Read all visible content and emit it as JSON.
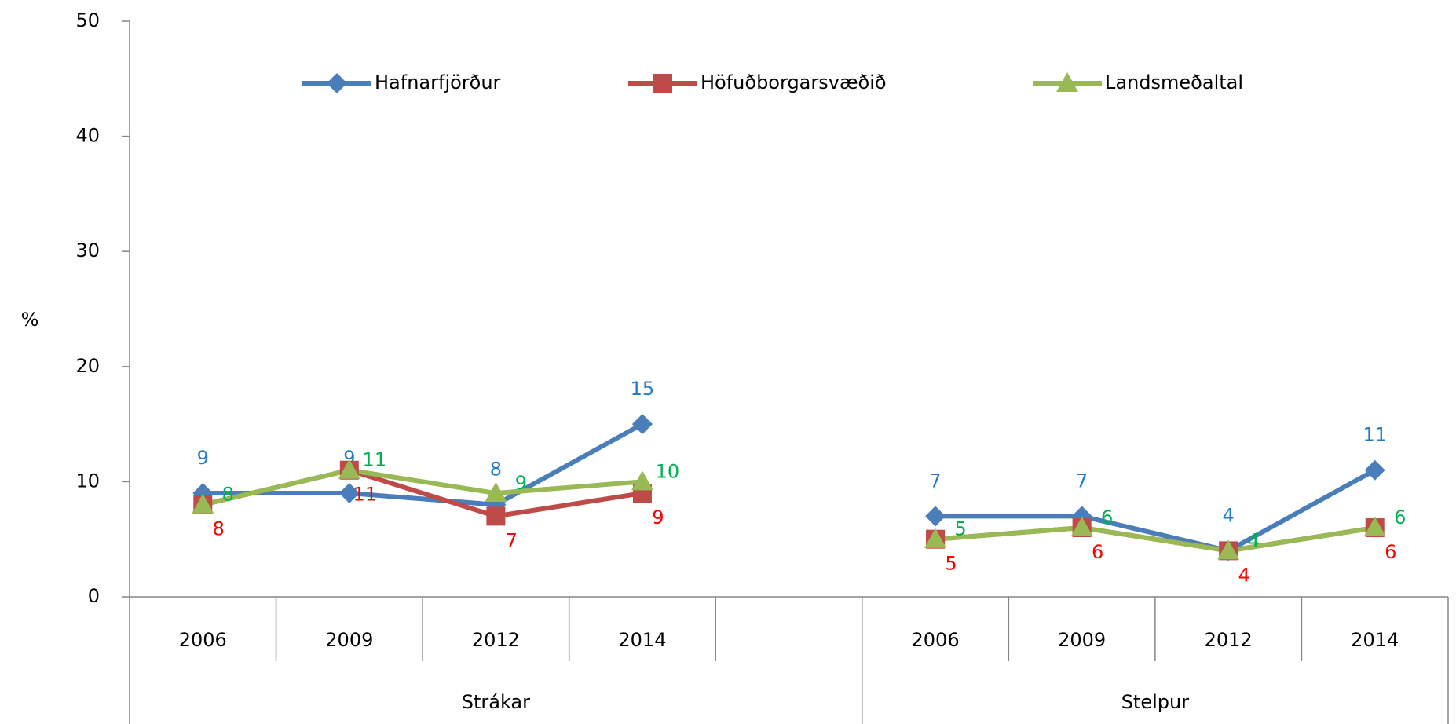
{
  "chart_data": {
    "type": "line",
    "y_label": "%",
    "categories": [
      "2006",
      "2009",
      "2012",
      "2014",
      null,
      "2006",
      "2009",
      "2012",
      "2014"
    ],
    "groups": [
      "Strákar",
      "Stelpur"
    ],
    "series": [
      {
        "name": "Hafnarfjörður",
        "color": "#4a7ebb",
        "label_color": "#1f7bc6",
        "marker": "diamond",
        "values": [
          9,
          9,
          8,
          15,
          null,
          7,
          7,
          4,
          11
        ]
      },
      {
        "name": "Höfuðborgarsvæðið",
        "color": "#be4b48",
        "label_color": "#ff0000",
        "marker": "square",
        "values": [
          8,
          11,
          7,
          9,
          null,
          5,
          6,
          4,
          6
        ]
      },
      {
        "name": "Landsmeðaltal",
        "color": "#98b954",
        "label_color": "#00b050",
        "marker": "triangle",
        "values": [
          8,
          11,
          9,
          10,
          null,
          5,
          6,
          4,
          6
        ]
      }
    ],
    "ylim": [
      0,
      50
    ],
    "yticks": [
      0,
      10,
      20,
      30,
      40,
      50
    ],
    "legend": "top"
  }
}
